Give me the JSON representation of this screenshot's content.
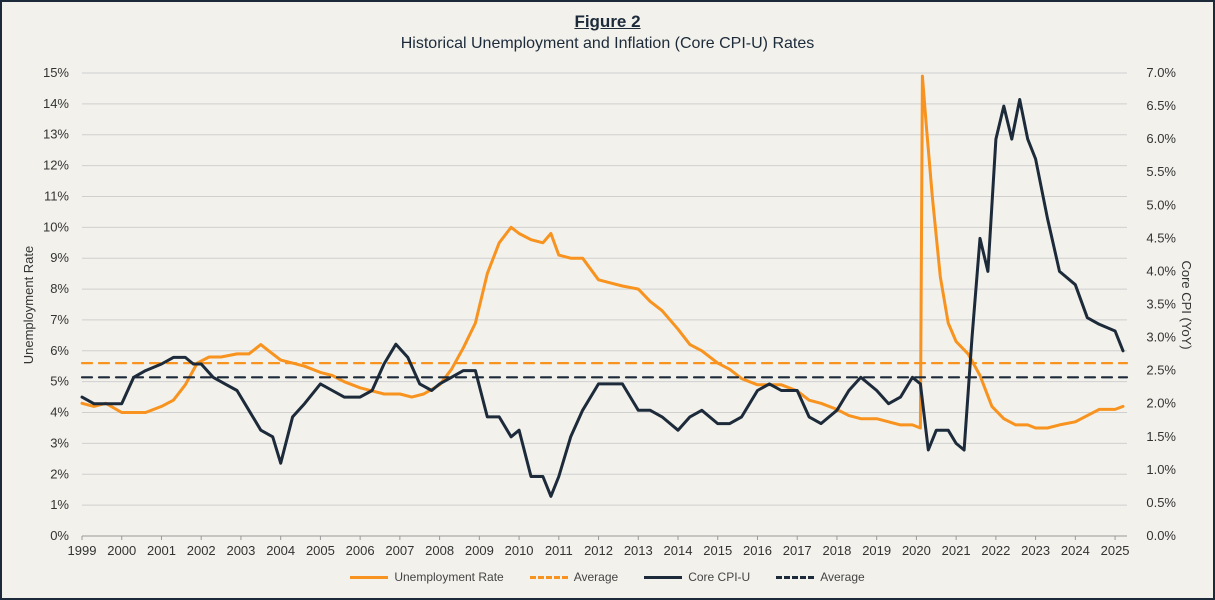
{
  "chart_data": {
    "type": "line",
    "title": "Figure 2",
    "subtitle": "Historical Unemployment and Inflation (Core CPI-U) Rates",
    "ylabel_left": "Unemployment Rate",
    "ylabel_right": "Core CPI (YoY)",
    "x_range": [
      1999,
      2025.3
    ],
    "x_ticks": [
      "1999",
      "2000",
      "2001",
      "2002",
      "2003",
      "2004",
      "2005",
      "2006",
      "2007",
      "2008",
      "2009",
      "2010",
      "2011",
      "2012",
      "2013",
      "2014",
      "2015",
      "2016",
      "2017",
      "2018",
      "2019",
      "2020",
      "2021",
      "2022",
      "2023",
      "2024",
      "2025"
    ],
    "y_left_ticks": [
      "0%",
      "1%",
      "2%",
      "3%",
      "4%",
      "5%",
      "6%",
      "7%",
      "8%",
      "9%",
      "10%",
      "11%",
      "12%",
      "13%",
      "14%",
      "15%"
    ],
    "y_right_ticks": [
      "0.0%",
      "0.5%",
      "1.0%",
      "1.5%",
      "2.0%",
      "2.5%",
      "3.0%",
      "3.5%",
      "4.0%",
      "4.5%",
      "5.0%",
      "5.5%",
      "6.0%",
      "6.5%",
      "7.0%"
    ],
    "ylim_left": [
      0,
      15
    ],
    "ylim_right": [
      0,
      7
    ],
    "grid": true,
    "legend_position": "bottom",
    "series": [
      {
        "name": "Unemployment Rate",
        "axis": "left",
        "color": "#f7931e",
        "style": "solid",
        "x": [
          1999.0,
          1999.3,
          1999.6,
          2000.0,
          2000.3,
          2000.6,
          2001.0,
          2001.3,
          2001.6,
          2001.9,
          2002.2,
          2002.5,
          2002.9,
          2003.2,
          2003.5,
          2003.7,
          2004.0,
          2004.3,
          2004.6,
          2005.0,
          2005.3,
          2005.6,
          2006.0,
          2006.3,
          2006.6,
          2007.0,
          2007.3,
          2007.6,
          2008.0,
          2008.3,
          2008.6,
          2008.9,
          2009.2,
          2009.5,
          2009.8,
          2010.0,
          2010.3,
          2010.6,
          2010.8,
          2011.0,
          2011.3,
          2011.6,
          2012.0,
          2012.3,
          2012.6,
          2013.0,
          2013.3,
          2013.6,
          2014.0,
          2014.3,
          2014.6,
          2015.0,
          2015.3,
          2015.6,
          2016.0,
          2016.3,
          2016.6,
          2017.0,
          2017.3,
          2017.6,
          2018.0,
          2018.3,
          2018.6,
          2019.0,
          2019.3,
          2019.6,
          2019.9,
          2020.1,
          2020.15,
          2020.25,
          2020.4,
          2020.6,
          2020.8,
          2021.0,
          2021.3,
          2021.6,
          2021.9,
          2022.2,
          2022.5,
          2022.8,
          2023.0,
          2023.3,
          2023.6,
          2024.0,
          2024.3,
          2024.6,
          2025.0,
          2025.2
        ],
        "values": [
          4.3,
          4.2,
          4.3,
          4.0,
          4.0,
          4.0,
          4.2,
          4.4,
          4.9,
          5.6,
          5.8,
          5.8,
          5.9,
          5.9,
          6.2,
          6.0,
          5.7,
          5.6,
          5.5,
          5.3,
          5.2,
          5.0,
          4.8,
          4.7,
          4.6,
          4.6,
          4.5,
          4.6,
          4.9,
          5.4,
          6.1,
          6.9,
          8.5,
          9.5,
          10.0,
          9.8,
          9.6,
          9.5,
          9.8,
          9.1,
          9.0,
          9.0,
          8.3,
          8.2,
          8.1,
          8.0,
          7.6,
          7.3,
          6.7,
          6.2,
          6.0,
          5.6,
          5.4,
          5.1,
          4.9,
          4.9,
          4.9,
          4.7,
          4.4,
          4.3,
          4.1,
          3.9,
          3.8,
          3.8,
          3.7,
          3.6,
          3.6,
          3.5,
          14.9,
          13.3,
          11.0,
          8.4,
          6.9,
          6.3,
          5.9,
          5.2,
          4.2,
          3.8,
          3.6,
          3.6,
          3.5,
          3.5,
          3.6,
          3.7,
          3.9,
          4.1,
          4.1,
          4.2
        ]
      },
      {
        "name": "Average",
        "axis": "left",
        "color": "#f7931e",
        "style": "dashed",
        "x": [
          1999.0,
          2025.3
        ],
        "values": [
          5.6,
          5.6
        ]
      },
      {
        "name": "Core CPI-U",
        "axis": "right",
        "color": "#1c2a3a",
        "style": "solid",
        "x": [
          1999.0,
          1999.3,
          1999.6,
          2000.0,
          2000.3,
          2000.6,
          2001.0,
          2001.3,
          2001.6,
          2001.8,
          2002.0,
          2002.3,
          2002.6,
          2002.9,
          2003.2,
          2003.5,
          2003.8,
          2004.0,
          2004.3,
          2004.6,
          2005.0,
          2005.3,
          2005.6,
          2006.0,
          2006.3,
          2006.6,
          2006.9,
          2007.2,
          2007.5,
          2007.8,
          2008.0,
          2008.3,
          2008.6,
          2008.9,
          2009.2,
          2009.5,
          2009.8,
          2010.0,
          2010.3,
          2010.6,
          2010.8,
          2011.0,
          2011.3,
          2011.6,
          2012.0,
          2012.3,
          2012.6,
          2013.0,
          2013.3,
          2013.6,
          2014.0,
          2014.3,
          2014.6,
          2015.0,
          2015.3,
          2015.6,
          2016.0,
          2016.3,
          2016.6,
          2017.0,
          2017.3,
          2017.6,
          2018.0,
          2018.3,
          2018.6,
          2019.0,
          2019.3,
          2019.6,
          2019.9,
          2020.1,
          2020.3,
          2020.5,
          2020.8,
          2021.0,
          2021.2,
          2021.4,
          2021.6,
          2021.8,
          2022.0,
          2022.2,
          2022.4,
          2022.6,
          2022.8,
          2023.0,
          2023.3,
          2023.6,
          2024.0,
          2024.3,
          2024.6,
          2025.0,
          2025.2
        ],
        "values": [
          2.1,
          2.0,
          2.0,
          2.0,
          2.4,
          2.5,
          2.6,
          2.7,
          2.7,
          2.6,
          2.6,
          2.4,
          2.3,
          2.2,
          1.9,
          1.6,
          1.5,
          1.1,
          1.8,
          2.0,
          2.3,
          2.2,
          2.1,
          2.1,
          2.2,
          2.6,
          2.9,
          2.7,
          2.3,
          2.2,
          2.3,
          2.4,
          2.5,
          2.5,
          1.8,
          1.8,
          1.5,
          1.6,
          0.9,
          0.9,
          0.6,
          0.9,
          1.5,
          1.9,
          2.3,
          2.3,
          2.3,
          1.9,
          1.9,
          1.8,
          1.6,
          1.8,
          1.9,
          1.7,
          1.7,
          1.8,
          2.2,
          2.3,
          2.2,
          2.2,
          1.8,
          1.7,
          1.9,
          2.2,
          2.4,
          2.2,
          2.0,
          2.1,
          2.4,
          2.3,
          1.3,
          1.6,
          1.6,
          1.4,
          1.3,
          3.0,
          4.5,
          4.0,
          6.0,
          6.5,
          6.0,
          6.6,
          6.0,
          5.7,
          4.8,
          4.0,
          3.8,
          3.3,
          3.2,
          3.1,
          2.8
        ]
      },
      {
        "name": "Average",
        "axis": "right",
        "color": "#1c2a3a",
        "style": "dashed",
        "x": [
          1999.0,
          2025.3
        ],
        "values": [
          2.4,
          2.4
        ]
      }
    ]
  }
}
